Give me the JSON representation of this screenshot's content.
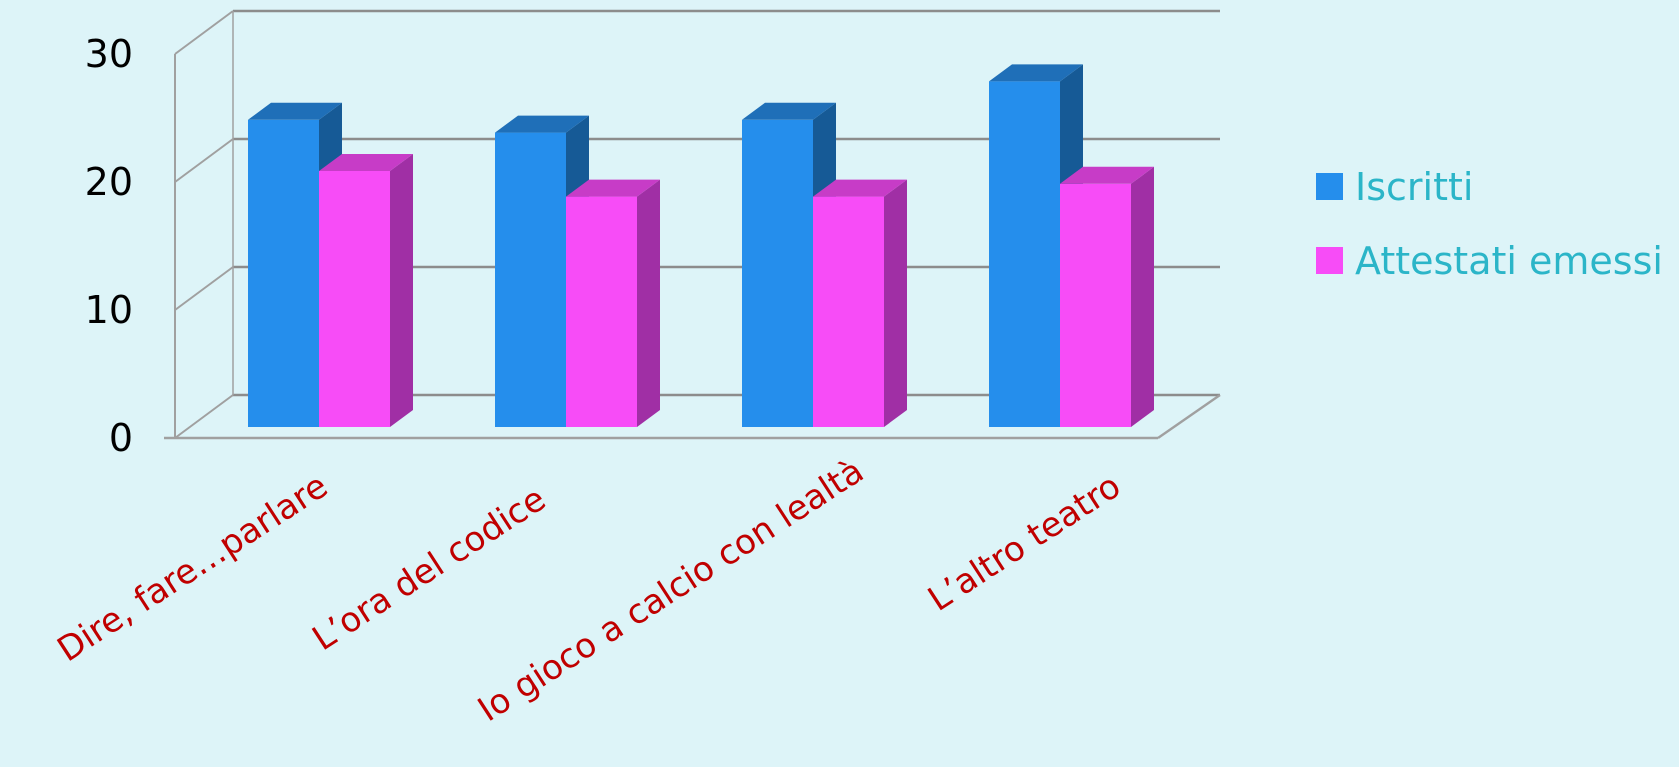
{
  "chart_data": {
    "type": "bar",
    "style": "3d-clustered-column",
    "categories": [
      "Dire, fare…parlare",
      "L’ora del codice",
      "Io gioco a calcio con lealtà",
      "L’altro teatro"
    ],
    "series": [
      {
        "name": "Iscritti",
        "values": [
          24,
          23,
          24,
          27
        ],
        "color": "#258EEC",
        "top_color": "#1F6FB8",
        "side_color": "#165A96"
      },
      {
        "name": "Attestati emessi",
        "values": [
          20,
          18,
          18,
          19
        ],
        "color": "#F74CF7",
        "top_color": "#C73CC7",
        "side_color": "#A02FA5"
      }
    ],
    "ylim": [
      0,
      30
    ],
    "yticks": [
      "0",
      "10",
      "20",
      "30"
    ],
    "ytick_values": [
      0,
      10,
      20,
      30
    ],
    "grid": true,
    "legend": "right",
    "tick_label_color": "#C00000",
    "legend_text_color": "#2BB5C8",
    "title": "",
    "xlabel": "",
    "ylabel": ""
  }
}
